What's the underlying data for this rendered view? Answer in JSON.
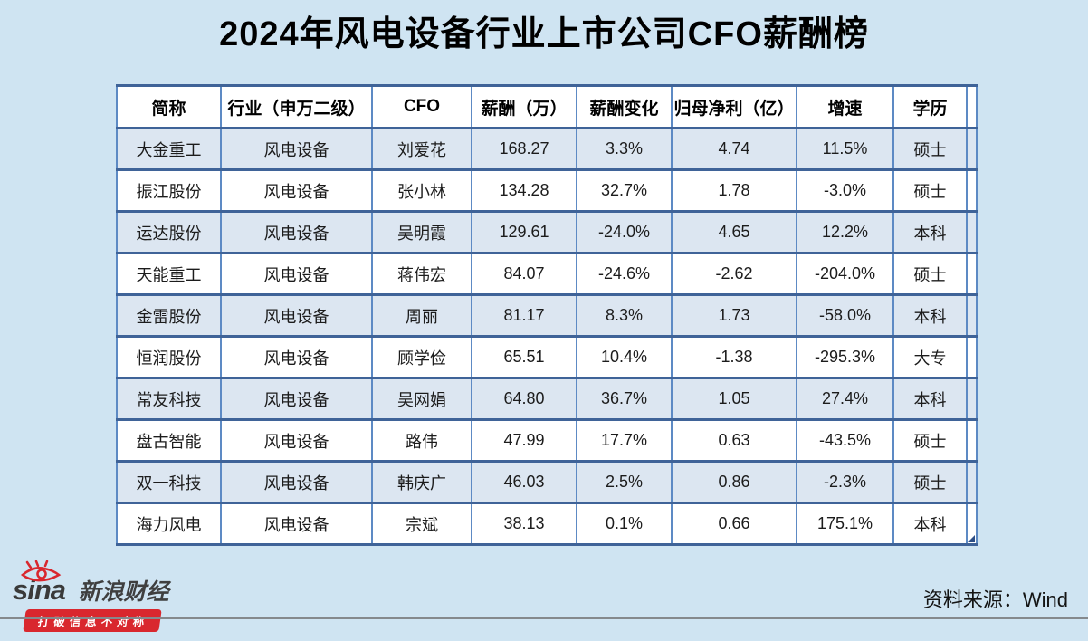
{
  "page": {
    "title": "2024年风电设备行业上市公司CFO薪酬榜",
    "source_note": "资料来源：Wind"
  },
  "logo": {
    "brand": "sina",
    "brand_cn": "新浪财经",
    "slogan": "打破信息不对称",
    "eye_icon": "sina-eye-icon"
  },
  "colors": {
    "page_background": "#cfe4f2",
    "row_alt_background": "#dce6f1",
    "row_background": "#ffffff",
    "border_horizontal": "#3f6398",
    "border_vertical": "#5d8ac4",
    "accent_red": "#d9272e",
    "divider_gray": "#85898d",
    "text": "#1c1c1c"
  },
  "chart_data": {
    "type": "table",
    "title": "2024年风电设备行业上市公司CFO薪酬榜",
    "columns": [
      "简称",
      "行业（申万二级）",
      "CFO",
      "薪酬（万）",
      "薪酬变化",
      "归母净利（亿）",
      "增速",
      "学历"
    ],
    "rows": [
      [
        "大金重工",
        "风电设备",
        "刘爱花",
        "168.27",
        "3.3%",
        "4.74",
        "11.5%",
        "硕士"
      ],
      [
        "振江股份",
        "风电设备",
        "张小林",
        "134.28",
        "32.7%",
        "1.78",
        "-3.0%",
        "硕士"
      ],
      [
        "运达股份",
        "风电设备",
        "吴明霞",
        "129.61",
        "-24.0%",
        "4.65",
        "12.2%",
        "本科"
      ],
      [
        "天能重工",
        "风电设备",
        "蒋伟宏",
        "84.07",
        "-24.6%",
        "-2.62",
        "-204.0%",
        "硕士"
      ],
      [
        "金雷股份",
        "风电设备",
        "周丽",
        "81.17",
        "8.3%",
        "1.73",
        "-58.0%",
        "本科"
      ],
      [
        "恒润股份",
        "风电设备",
        "顾学俭",
        "65.51",
        "10.4%",
        "-1.38",
        "-295.3%",
        "大专"
      ],
      [
        "常友科技",
        "风电设备",
        "吴网娟",
        "64.80",
        "36.7%",
        "1.05",
        "27.4%",
        "本科"
      ],
      [
        "盘古智能",
        "风电设备",
        "路伟",
        "47.99",
        "17.7%",
        "0.63",
        "-43.5%",
        "硕士"
      ],
      [
        "双一科技",
        "风电设备",
        "韩庆广",
        "46.03",
        "2.5%",
        "0.86",
        "-2.3%",
        "硕士"
      ],
      [
        "海力风电",
        "风电设备",
        "宗斌",
        "38.13",
        "0.1%",
        "0.66",
        "175.1%",
        "本科"
      ]
    ],
    "layout_hints": {
      "alternating_rows": "odd rows shaded light blue",
      "all_cells_centered": true
    }
  }
}
